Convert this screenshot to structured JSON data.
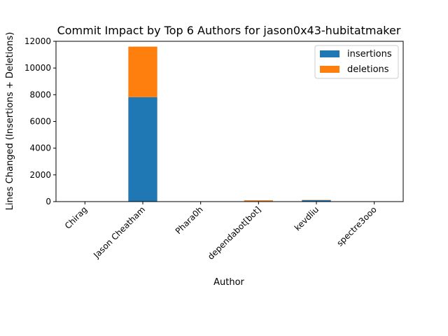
{
  "chart_data": {
    "type": "bar",
    "stacked": true,
    "title": "Commit Impact by Top 6 Authors for jason0x43-hubitatmaker",
    "xlabel": "Author",
    "ylabel": "Lines Changed (Insertions + Deletions)",
    "categories": [
      "Chirag",
      "Jason Cheatham",
      "Phara0h",
      "dependabot[bot]",
      "kevdliu",
      "spectre3ooo"
    ],
    "series": [
      {
        "name": "insertions",
        "color": "#1f77b4",
        "values": [
          2,
          7820,
          1,
          40,
          110,
          1
        ]
      },
      {
        "name": "deletions",
        "color": "#ff7f0e",
        "values": [
          1,
          3780,
          1,
          60,
          20,
          1
        ]
      }
    ],
    "ylim": [
      0,
      12000
    ],
    "yticks": [
      0,
      2000,
      4000,
      6000,
      8000,
      10000,
      12000
    ],
    "grid": false,
    "legend": "top-right"
  }
}
